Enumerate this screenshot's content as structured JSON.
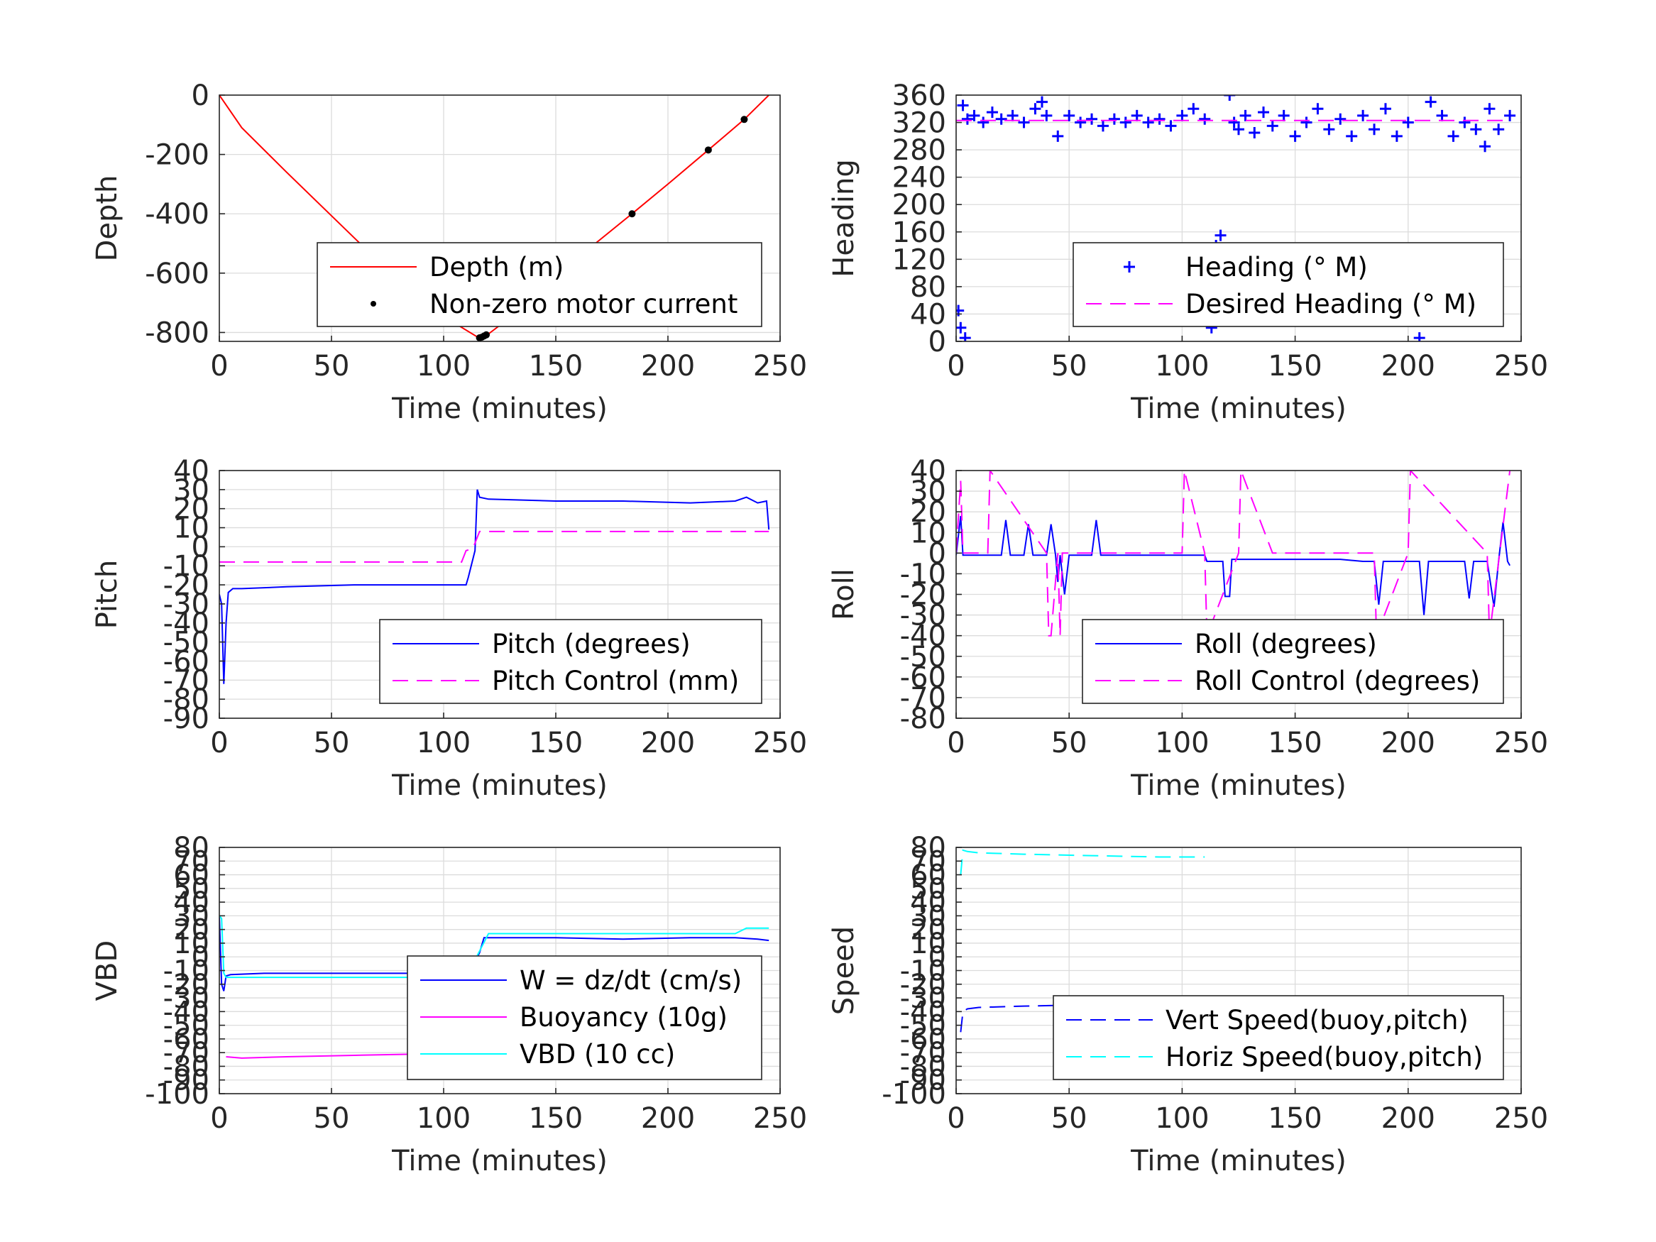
{
  "chart_data": [
    {
      "id": "depth",
      "type": "line",
      "xlabel": "Time (minutes)",
      "ylabel": "Depth",
      "xlim": [
        0,
        250
      ],
      "ylim": [
        -830,
        0
      ],
      "xticks": [
        0,
        50,
        100,
        150,
        200,
        250
      ],
      "yticks": [
        0,
        -200,
        -400,
        -600,
        -800
      ],
      "series": [
        {
          "name": "Depth (m)",
          "color": "#ff0000",
          "style": "solid",
          "x": [
            0,
            10,
            30,
            60,
            90,
            115,
            120,
            140,
            166,
            184,
            200,
            218,
            234,
            245
          ],
          "y": [
            0,
            -110,
            -260,
            -480,
            -700,
            -815,
            -805,
            -690,
            -510,
            -400,
            -300,
            -185,
            -82,
            0
          ]
        },
        {
          "name": "Non-zero motor current",
          "color": "#000000",
          "style": "dots",
          "x": [
            116,
            117,
            118,
            119,
            166,
            184,
            218,
            234
          ],
          "y": [
            -818,
            -816,
            -812,
            -808,
            -510,
            -400,
            -185,
            -82
          ]
        }
      ],
      "legend": "bottom-right"
    },
    {
      "id": "heading",
      "type": "scatter",
      "xlabel": "Time (minutes)",
      "ylabel": "Heading",
      "xlim": [
        0,
        250
      ],
      "ylim": [
        0,
        360
      ],
      "xticks": [
        0,
        50,
        100,
        150,
        200,
        250
      ],
      "yticks": [
        0,
        40,
        80,
        120,
        160,
        200,
        240,
        280,
        320,
        360
      ],
      "series": [
        {
          "name": "Heading (° M)",
          "color": "#0000ff",
          "style": "plus",
          "x": [
            1,
            2,
            3,
            4,
            5,
            8,
            12,
            16,
            20,
            25,
            30,
            35,
            38,
            40,
            45,
            50,
            55,
            60,
            65,
            70,
            75,
            80,
            85,
            90,
            95,
            100,
            105,
            110,
            113,
            115,
            117,
            119,
            121,
            123,
            125,
            128,
            132,
            136,
            140,
            145,
            150,
            155,
            160,
            165,
            170,
            175,
            180,
            185,
            190,
            195,
            200,
            205,
            210,
            215,
            220,
            225,
            230,
            234,
            236,
            240,
            245
          ],
          "y": [
            45,
            20,
            345,
            5,
            325,
            330,
            320,
            335,
            325,
            330,
            320,
            340,
            350,
            330,
            300,
            330,
            320,
            325,
            315,
            325,
            320,
            330,
            320,
            325,
            315,
            330,
            340,
            325,
            20,
            140,
            155,
            100,
            360,
            320,
            310,
            330,
            305,
            335,
            315,
            330,
            300,
            320,
            340,
            310,
            325,
            300,
            330,
            310,
            340,
            300,
            320,
            5,
            350,
            330,
            300,
            320,
            310,
            285,
            340,
            310,
            330
          ]
        },
        {
          "name": "Desired Heading (° M)",
          "color": "#ff00ff",
          "style": "dashed",
          "x": [
            0,
            245
          ],
          "y": [
            323,
            323
          ]
        }
      ],
      "legend": "bottom-right"
    },
    {
      "id": "pitch",
      "type": "line",
      "xlabel": "Time (minutes)",
      "ylabel": "Pitch",
      "xlim": [
        0,
        250
      ],
      "ylim": [
        -90,
        40
      ],
      "xticks": [
        0,
        50,
        100,
        150,
        200,
        250
      ],
      "yticks": [
        40,
        30,
        20,
        10,
        0,
        -10,
        -20,
        -30,
        -40,
        -50,
        -60,
        -70,
        -80,
        -90
      ],
      "series": [
        {
          "name": "Pitch (degrees)",
          "color": "#0000ff",
          "style": "solid",
          "x": [
            0,
            1,
            2,
            3,
            4,
            6,
            10,
            30,
            60,
            90,
            110,
            111,
            114,
            115,
            116,
            120,
            150,
            180,
            210,
            230,
            235,
            240,
            244,
            245
          ],
          "y": [
            -25,
            -30,
            -72,
            -40,
            -24,
            -22,
            -22,
            -21,
            -20,
            -20,
            -20,
            -16,
            -2,
            30,
            26,
            25,
            24,
            24,
            23,
            24,
            26,
            23,
            24,
            9
          ]
        },
        {
          "name": "Pitch Control (mm)",
          "color": "#ff00ff",
          "style": "dashed",
          "x": [
            0,
            108,
            110,
            113,
            116,
            245
          ],
          "y": [
            -8,
            -8,
            -2,
            -1,
            8,
            8
          ]
        }
      ],
      "legend": "bottom-right"
    },
    {
      "id": "roll",
      "type": "line",
      "xlabel": "Time (minutes)",
      "ylabel": "Roll",
      "xlim": [
        0,
        250
      ],
      "ylim": [
        -80,
        40
      ],
      "xticks": [
        0,
        50,
        100,
        150,
        200,
        250
      ],
      "yticks": [
        40,
        30,
        20,
        10,
        0,
        -10,
        -20,
        -30,
        -40,
        -50,
        -60,
        -70,
        -80
      ],
      "series": [
        {
          "name": "Roll (degrees)",
          "color": "#0000ff",
          "style": "solid",
          "x": [
            0,
            2,
            3,
            5,
            20,
            22,
            24,
            30,
            32,
            34,
            40,
            42,
            44,
            45,
            46,
            48,
            50,
            55,
            60,
            62,
            64,
            100,
            110,
            111,
            118,
            119,
            121,
            122,
            140,
            150,
            170,
            180,
            185,
            187,
            189,
            200,
            205,
            207,
            209,
            220,
            225,
            227,
            229,
            235,
            238,
            240,
            242,
            244,
            245
          ],
          "y": [
            -1,
            18,
            -1,
            -1,
            -1,
            16,
            -1,
            -1,
            14,
            -1,
            -1,
            14,
            -1,
            -14,
            -1,
            -20,
            -1,
            -1,
            -1,
            16,
            -1,
            -1,
            -1,
            -4,
            -4,
            -21,
            -21,
            -3,
            -3,
            -3,
            -3,
            -4,
            -4,
            -25,
            -4,
            -4,
            -4,
            -30,
            -4,
            -4,
            -4,
            -22,
            -4,
            -4,
            -26,
            -4,
            15,
            -4,
            -6
          ]
        },
        {
          "name": "Roll Control (degrees)",
          "color": "#ff00ff",
          "style": "dashed",
          "x": [
            0,
            2,
            3,
            14,
            15,
            40,
            41,
            42,
            45,
            46,
            47,
            100,
            101,
            110,
            111,
            125,
            126,
            140,
            160,
            185,
            186,
            200,
            201,
            235,
            236,
            245
          ],
          "y": [
            0,
            35,
            0,
            0,
            40,
            0,
            -40,
            -40,
            0,
            -40,
            0,
            0,
            40,
            0,
            -40,
            0,
            40,
            0,
            0,
            0,
            -40,
            0,
            40,
            0,
            -40,
            40
          ]
        }
      ],
      "legend": "bottom-right"
    },
    {
      "id": "vbd",
      "type": "line",
      "xlabel": "Time (minutes)",
      "ylabel": "VBD",
      "xlim": [
        0,
        250
      ],
      "ylim": [
        -100,
        80
      ],
      "xticks": [
        0,
        50,
        100,
        150,
        200,
        250
      ],
      "yticks": [
        80,
        70,
        60,
        50,
        40,
        30,
        20,
        10,
        0,
        -10,
        -20,
        -30,
        -40,
        -50,
        -60,
        -70,
        -80,
        -90,
        -100
      ],
      "series": [
        {
          "name": "W = dz/dt (cm/s)",
          "color": "#0000ff",
          "style": "solid",
          "x": [
            0,
            1,
            2,
            3,
            5,
            20,
            50,
            80,
            110,
            112,
            116,
            118,
            150,
            180,
            210,
            230,
            240,
            245
          ],
          "y": [
            30,
            -20,
            -25,
            -14,
            -13,
            -12,
            -12,
            -12,
            -12,
            -10,
            3,
            14,
            14,
            13,
            14,
            14,
            13,
            12
          ]
        },
        {
          "name": "Buoyancy (10g)",
          "color": "#ff00ff",
          "style": "solid",
          "x": [
            3,
            10,
            30,
            60,
            90,
            110
          ],
          "y": [
            -73,
            -74,
            -73,
            -72,
            -71,
            -71
          ]
        },
        {
          "name": "VBD (10 cc)",
          "color": "#00ffff",
          "style": "solid",
          "x": [
            0,
            1,
            2,
            3,
            110,
            115,
            120,
            230,
            235,
            245
          ],
          "y": [
            30,
            28,
            -12,
            -15,
            -15,
            1,
            17,
            17,
            21,
            21
          ]
        }
      ],
      "legend": "bottom-right"
    },
    {
      "id": "speed",
      "type": "line",
      "xlabel": "Time (minutes)",
      "ylabel": "Speed",
      "xlim": [
        0,
        250
      ],
      "ylim": [
        -100,
        80
      ],
      "xticks": [
        0,
        50,
        100,
        150,
        200,
        250
      ],
      "yticks": [
        80,
        70,
        60,
        50,
        40,
        30,
        20,
        10,
        0,
        -10,
        -20,
        -30,
        -40,
        -50,
        -60,
        -70,
        -80,
        -90,
        -100
      ],
      "series": [
        {
          "name": "Vert Speed(buoy,pitch)",
          "color": "#0000ff",
          "style": "dashed",
          "x": [
            2,
            3,
            5,
            10,
            30,
            60,
            90,
            110
          ],
          "y": [
            -55,
            -40,
            -38,
            -37,
            -36,
            -35,
            -34,
            -34
          ]
        },
        {
          "name": "Horiz Speed(buoy,pitch)",
          "color": "#00ffff",
          "style": "dashed",
          "x": [
            2,
            3,
            5,
            10,
            30,
            60,
            90,
            110
          ],
          "y": [
            60,
            78,
            77,
            76,
            75,
            74,
            73,
            73
          ]
        }
      ],
      "legend": "bottom-right"
    }
  ]
}
